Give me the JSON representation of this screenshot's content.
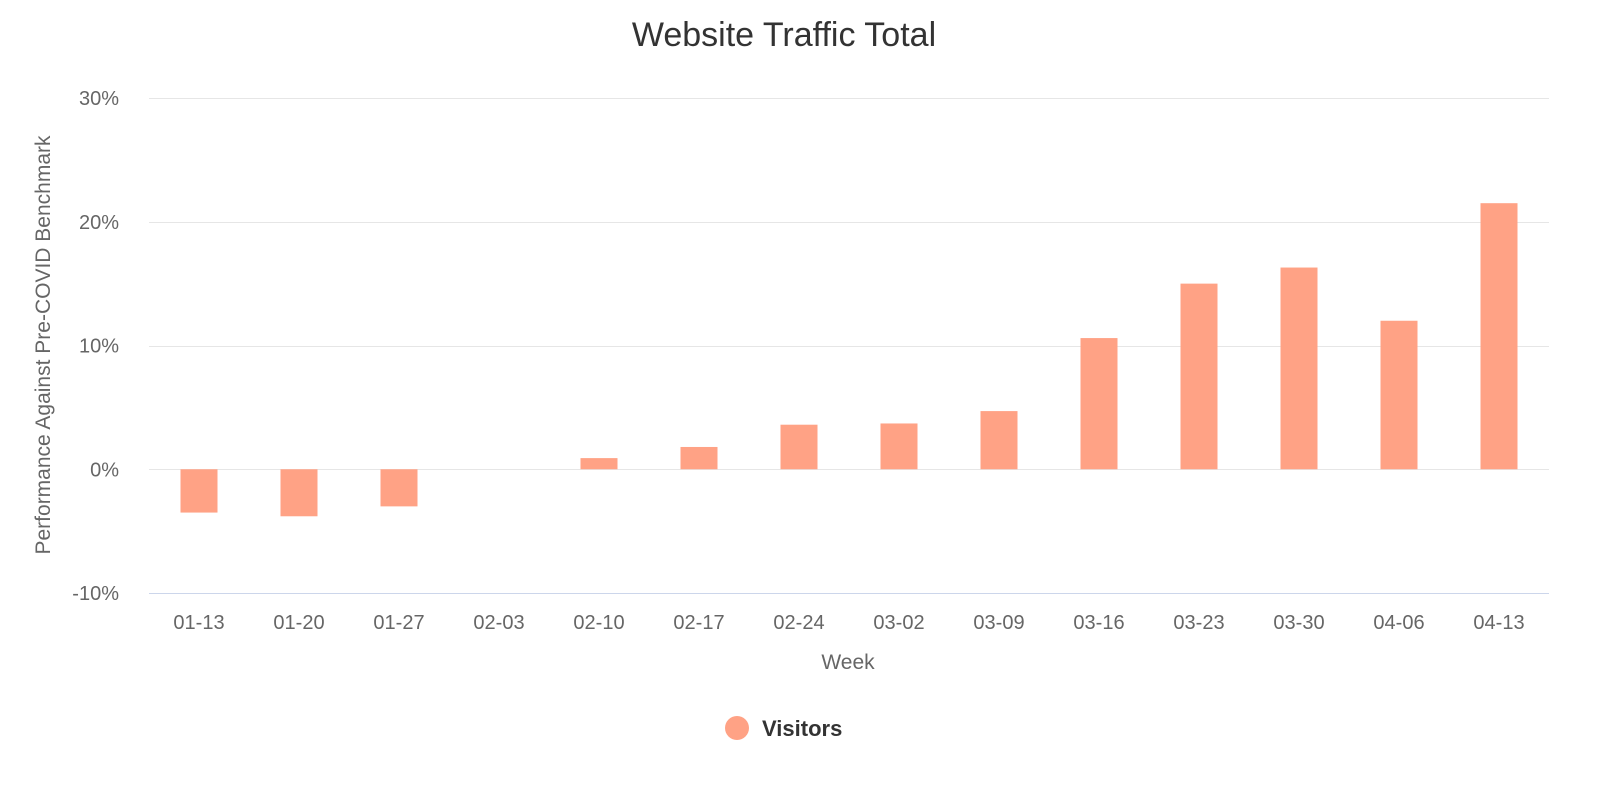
{
  "chart_data": {
    "type": "bar",
    "title": "Website Traffic Total",
    "xlabel": "Week",
    "ylabel": "Performance Against Pre-COVID Benchmark",
    "categories": [
      "01-13",
      "01-20",
      "01-27",
      "02-03",
      "02-10",
      "02-17",
      "02-24",
      "03-02",
      "03-09",
      "03-16",
      "03-23",
      "03-30",
      "04-06",
      "04-13"
    ],
    "series": [
      {
        "name": "Visitors",
        "color": "#ffa285",
        "values": [
          -3.5,
          -3.8,
          -3.0,
          0.0,
          0.9,
          1.8,
          3.6,
          3.7,
          4.7,
          10.6,
          15.0,
          16.3,
          12.0,
          21.5
        ]
      }
    ],
    "ylim": [
      -10,
      30
    ],
    "yticks": [
      -10,
      0,
      10,
      20,
      30
    ],
    "ytick_labels": [
      "-10%",
      "0%",
      "10%",
      "20%",
      "30%"
    ],
    "grid": true,
    "legend_position": "bottom-center",
    "colors": {
      "grid": "#e6e6e6",
      "baseline": "#ccd6eb"
    }
  }
}
